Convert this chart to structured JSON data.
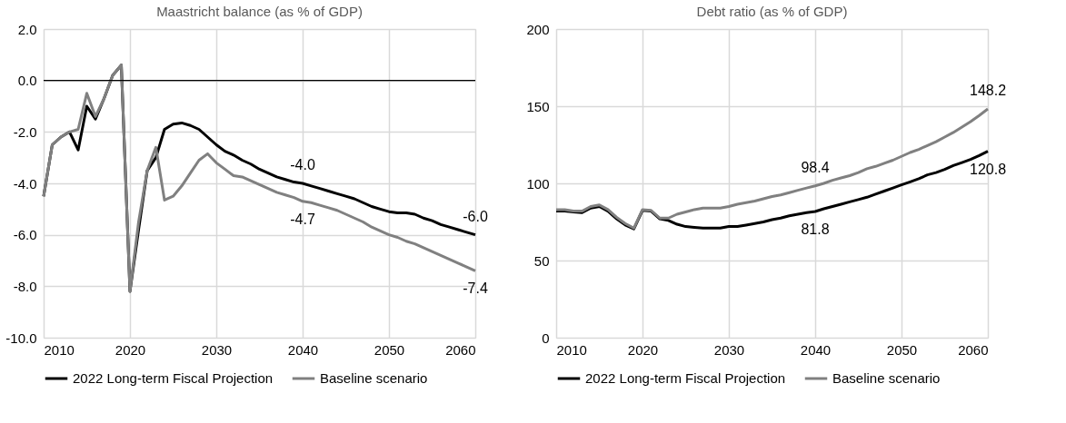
{
  "chart_data": [
    {
      "type": "line",
      "title": "Maastricht balance (as % of GDP)",
      "grid": true,
      "legend": "bottom",
      "xlim": [
        2010,
        2060
      ],
      "xticks": [
        2010,
        2020,
        2030,
        2040,
        2050,
        2060
      ],
      "ylim": [
        -10,
        2
      ],
      "yticks": [
        {
          "value": -10,
          "label": "-10.0"
        },
        {
          "value": -8,
          "label": "-8.0"
        },
        {
          "value": -6,
          "label": "-6.0"
        },
        {
          "value": -4,
          "label": "-4.0"
        },
        {
          "value": -2,
          "label": "-2.0"
        },
        {
          "value": 0,
          "label": "0.0"
        },
        {
          "value": 2,
          "label": "2.0"
        }
      ],
      "ref_lines": [
        {
          "axis": "y",
          "value": 0,
          "color": "#000000"
        }
      ],
      "x": [
        2010,
        2011,
        2012,
        2013,
        2014,
        2015,
        2016,
        2017,
        2018,
        2019,
        2020,
        2021,
        2022,
        2023,
        2024,
        2025,
        2026,
        2027,
        2028,
        2029,
        2030,
        2031,
        2032,
        2033,
        2034,
        2035,
        2036,
        2037,
        2038,
        2039,
        2040,
        2041,
        2042,
        2043,
        2044,
        2045,
        2046,
        2047,
        2048,
        2049,
        2050,
        2051,
        2052,
        2053,
        2054,
        2055,
        2056,
        2057,
        2058,
        2059,
        2060
      ],
      "series": [
        {
          "name": "2022 Long-term Fiscal Projection",
          "color": "#000000",
          "values": [
            -4.5,
            -2.5,
            -2.2,
            -2.0,
            -2.7,
            -1.0,
            -1.5,
            -0.7,
            0.2,
            0.6,
            -8.2,
            -5.8,
            -3.5,
            -3.0,
            -1.9,
            -1.7,
            -1.65,
            -1.75,
            -1.9,
            -2.2,
            -2.5,
            -2.75,
            -2.9,
            -3.1,
            -3.25,
            -3.45,
            -3.6,
            -3.75,
            -3.85,
            -3.95,
            -4.0,
            -4.1,
            -4.2,
            -4.3,
            -4.4,
            -4.5,
            -4.6,
            -4.75,
            -4.9,
            -5.0,
            -5.1,
            -5.15,
            -5.15,
            -5.2,
            -5.35,
            -5.45,
            -5.6,
            -5.7,
            -5.8,
            -5.9,
            -6.0
          ],
          "value_labels": [
            null,
            null,
            null,
            null,
            null,
            null,
            null,
            null,
            null,
            null,
            null,
            null,
            null,
            null,
            null,
            null,
            null,
            null,
            null,
            null,
            null,
            null,
            null,
            null,
            null,
            null,
            null,
            null,
            null,
            null,
            "-4.0",
            null,
            null,
            null,
            null,
            null,
            null,
            null,
            null,
            null,
            null,
            null,
            null,
            null,
            null,
            null,
            null,
            null,
            null,
            null,
            "-6.0"
          ]
        },
        {
          "name": "Baseline scenario",
          "color": "#808080",
          "values": [
            -4.5,
            -2.5,
            -2.2,
            -2.0,
            -1.9,
            -0.5,
            -1.4,
            -0.7,
            0.2,
            0.6,
            -8.2,
            -5.5,
            -3.5,
            -2.6,
            -4.65,
            -4.5,
            -4.1,
            -3.6,
            -3.1,
            -2.85,
            -3.2,
            -3.45,
            -3.7,
            -3.75,
            -3.9,
            -4.05,
            -4.2,
            -4.35,
            -4.45,
            -4.55,
            -4.7,
            -4.75,
            -4.85,
            -4.95,
            -5.05,
            -5.2,
            -5.35,
            -5.5,
            -5.7,
            -5.85,
            -6.0,
            -6.1,
            -6.25,
            -6.35,
            -6.5,
            -6.65,
            -6.8,
            -6.95,
            -7.1,
            -7.25,
            -7.4
          ],
          "value_labels": [
            null,
            null,
            null,
            null,
            null,
            null,
            null,
            null,
            null,
            null,
            null,
            null,
            null,
            null,
            null,
            null,
            null,
            null,
            null,
            null,
            null,
            null,
            null,
            null,
            null,
            null,
            null,
            null,
            null,
            null,
            "-4.7",
            null,
            null,
            null,
            null,
            null,
            null,
            null,
            null,
            null,
            null,
            null,
            null,
            null,
            null,
            null,
            null,
            null,
            null,
            null,
            "-7.4"
          ]
        }
      ]
    },
    {
      "type": "line",
      "title": "Debt ratio (as % of GDP)",
      "grid": true,
      "legend": "bottom",
      "xlim": [
        2010,
        2060
      ],
      "xticks": [
        2010,
        2020,
        2030,
        2040,
        2050,
        2060
      ],
      "ylim": [
        0,
        200
      ],
      "yticks": [
        0,
        50,
        100,
        150,
        200
      ],
      "x": [
        2010,
        2011,
        2012,
        2013,
        2014,
        2015,
        2016,
        2017,
        2018,
        2019,
        2020,
        2021,
        2022,
        2023,
        2024,
        2025,
        2026,
        2027,
        2028,
        2029,
        2030,
        2031,
        2032,
        2033,
        2034,
        2035,
        2036,
        2037,
        2038,
        2039,
        2040,
        2041,
        2042,
        2043,
        2044,
        2045,
        2046,
        2047,
        2048,
        2049,
        2050,
        2051,
        2052,
        2053,
        2054,
        2055,
        2056,
        2057,
        2058,
        2059,
        2060
      ],
      "series": [
        {
          "name": "2022 Long-term Fiscal Projection",
          "color": "#000000",
          "values": [
            82,
            82,
            81.5,
            81,
            84,
            85,
            82,
            77,
            73,
            70.5,
            82.5,
            82,
            77,
            76,
            73.5,
            72,
            71.5,
            71,
            71,
            71,
            72,
            72,
            73,
            74,
            75,
            76.5,
            77.5,
            79,
            80,
            81,
            81.8,
            83.5,
            85,
            86.5,
            88,
            89.5,
            91,
            93,
            95,
            97,
            99,
            101,
            103,
            105.5,
            107,
            109,
            111.5,
            113.5,
            115.5,
            118,
            120.8
          ],
          "value_labels": [
            null,
            null,
            null,
            null,
            null,
            null,
            null,
            null,
            null,
            null,
            null,
            null,
            null,
            null,
            null,
            null,
            null,
            null,
            null,
            null,
            null,
            null,
            null,
            null,
            null,
            null,
            null,
            null,
            null,
            null,
            "81.8",
            null,
            null,
            null,
            null,
            null,
            null,
            null,
            null,
            null,
            null,
            null,
            null,
            null,
            null,
            null,
            null,
            null,
            null,
            null,
            "120.8"
          ]
        },
        {
          "name": "Baseline scenario",
          "color": "#808080",
          "values": [
            83,
            83,
            82,
            82,
            85,
            86,
            83,
            78,
            74,
            71,
            83,
            82.5,
            77.5,
            77.5,
            80,
            81.5,
            83,
            84,
            84,
            84,
            85,
            86.5,
            87.5,
            88.5,
            90,
            91.5,
            92.5,
            94,
            95.5,
            97,
            98.4,
            100,
            102,
            103.5,
            105,
            107,
            109.5,
            111,
            113,
            115,
            117.5,
            120,
            122,
            124.5,
            127,
            130,
            133,
            136.5,
            140,
            144,
            148.2
          ],
          "value_labels": [
            null,
            null,
            null,
            null,
            null,
            null,
            null,
            null,
            null,
            null,
            null,
            null,
            null,
            null,
            null,
            null,
            null,
            null,
            null,
            null,
            null,
            null,
            null,
            null,
            null,
            null,
            null,
            null,
            null,
            null,
            "98.4",
            null,
            null,
            null,
            null,
            null,
            null,
            null,
            null,
            null,
            null,
            null,
            null,
            null,
            null,
            null,
            null,
            null,
            null,
            null,
            "148.2"
          ]
        }
      ]
    }
  ]
}
